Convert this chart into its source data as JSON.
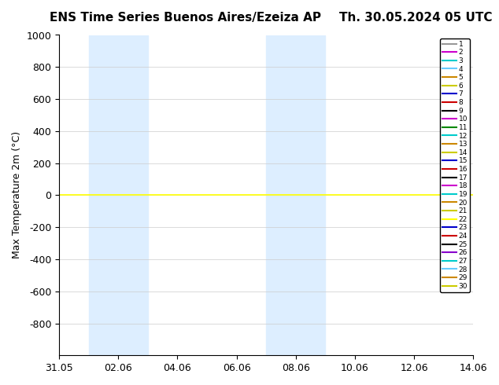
{
  "title_left": "ENS Time Series Buenos Aires/Ezeiza AP",
  "title_right": "Th. 30.05.2024 05 UTC",
  "ylabel": "Max Temperature 2m (°C)",
  "ylim": [
    -1000,
    1000
  ],
  "yticks": [
    -800,
    -600,
    -400,
    -200,
    0,
    200,
    400,
    600,
    800,
    1000
  ],
  "x_start": 0,
  "x_end": 14,
  "xtick_labels": [
    "31.05",
    "02.06",
    "04.06",
    "06.06",
    "08.06",
    "10.06",
    "12.06",
    "14.06"
  ],
  "xtick_positions": [
    0,
    2,
    4,
    6,
    8,
    10,
    12,
    14
  ],
  "shaded_regions": [
    {
      "start": 1,
      "end": 3
    },
    {
      "start": 7,
      "end": 9
    }
  ],
  "flat_line_y": 0,
  "flat_line_color": "#ffff00",
  "member_colors": [
    "#999999",
    "#cc00cc",
    "#00cccc",
    "#66ccff",
    "#cc8800",
    "#cccc00",
    "#0000cc",
    "#cc0000",
    "#000000",
    "#cc00cc",
    "#008800",
    "#00cccc",
    "#cc8800",
    "#cccc00",
    "#0000cc",
    "#cc0000",
    "#000000",
    "#cc00cc",
    "#00cccc",
    "#cc8800",
    "#cccc00",
    "#ffff00",
    "#0000cc",
    "#cc0000",
    "#000000",
    "#8800cc",
    "#00cccc",
    "#66ccff",
    "#cc8800",
    "#cccc00"
  ],
  "member_labels": [
    "1",
    "2",
    "3",
    "4",
    "5",
    "6",
    "7",
    "8",
    "9",
    "10",
    "11",
    "12",
    "13",
    "14",
    "15",
    "16",
    "17",
    "18",
    "19",
    "20",
    "21",
    "22",
    "23",
    "24",
    "25",
    "26",
    "27",
    "28",
    "29",
    "30"
  ],
  "bg_color": "#ffffff",
  "shade_color": "#ddeeff",
  "grid_color": "#cccccc",
  "title_fontsize": 11,
  "axis_fontsize": 9,
  "legend_fontsize": 6.5
}
